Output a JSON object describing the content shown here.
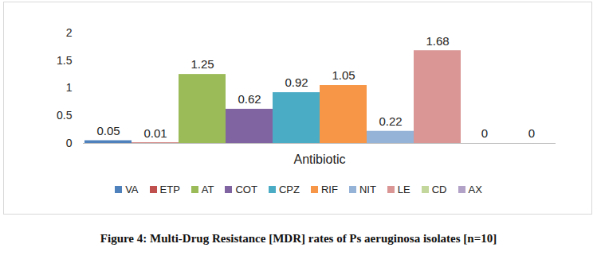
{
  "chart_data": {
    "type": "bar",
    "title": "Figure 4: Multi-Drug Resistance [MDR] rates of Ps aeruginosa isolates [n=10]",
    "categories": [
      "Antibiotic"
    ],
    "series": [
      {
        "name": "VA",
        "color": "#4f81bd",
        "values": [
          0.05
        ]
      },
      {
        "name": "ETP",
        "color": "#c0504d",
        "values": [
          0.01
        ]
      },
      {
        "name": "AT",
        "color": "#9bbb59",
        "values": [
          1.25
        ]
      },
      {
        "name": "COT",
        "color": "#8064a2",
        "values": [
          0.62
        ]
      },
      {
        "name": "CPZ",
        "color": "#4bacc6",
        "values": [
          0.92
        ]
      },
      {
        "name": "RIF",
        "color": "#f79646",
        "values": [
          1.05
        ]
      },
      {
        "name": "NIT",
        "color": "#95b3d7",
        "values": [
          0.22
        ]
      },
      {
        "name": "LE",
        "color": "#d99694",
        "values": [
          1.68
        ]
      },
      {
        "name": "CD",
        "color": "#c3d69b",
        "values": [
          0
        ]
      },
      {
        "name": "AX",
        "color": "#b3a2c7",
        "values": [
          0
        ]
      }
    ],
    "ylim": [
      0,
      2
    ],
    "yticks": [
      0,
      0.5,
      1,
      1.5,
      2
    ],
    "grid": false,
    "legend": "bottom",
    "data_labels": true
  }
}
